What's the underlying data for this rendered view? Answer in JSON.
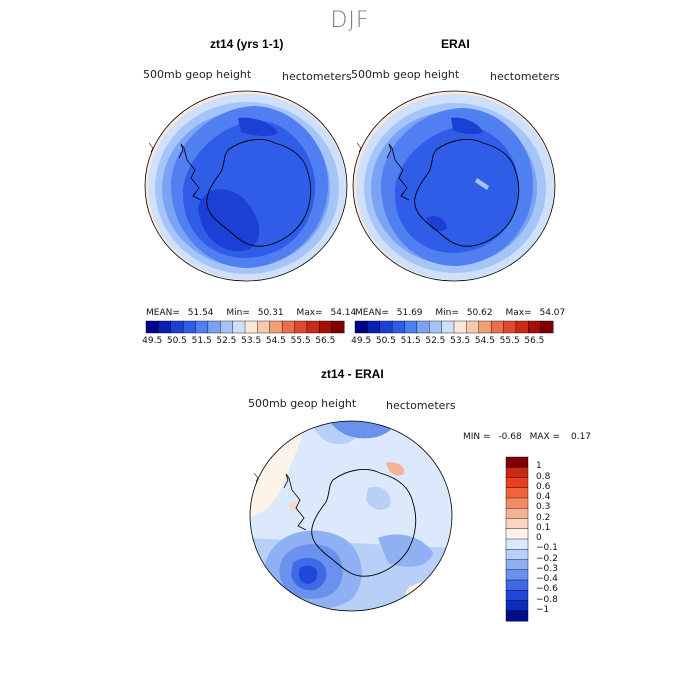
{
  "figure": {
    "season": "DJF"
  },
  "panels": [
    {
      "title": "zt14 (yrs 1-1)",
      "field_label": "500mb geop height",
      "units_label": "hectometers",
      "stats": {
        "mean_label": "MEAN=",
        "mean": "51.54",
        "min_label": "Min=",
        "min": "50.31",
        "max_label": "Max=",
        "max": "54.14"
      }
    },
    {
      "title": "ERAI",
      "field_label": "500mb geop height",
      "units_label": "hectometers",
      "stats": {
        "mean_label": "MEAN=",
        "mean": "51.69",
        "min_label": "Min=",
        "min": "50.62",
        "max_label": "Max=",
        "max": "54.07"
      }
    },
    {
      "title": "zt14 - ERAI",
      "field_label": "500mb geop height",
      "units_label": "hectometers",
      "stats": {
        "min_label": "MIN =",
        "min": "-0.68",
        "max_label": "MAX =",
        "max": "0.17"
      }
    }
  ],
  "colorbar_top": {
    "colors": [
      "#00008b",
      "#0a1fb4",
      "#1c3fd6",
      "#2f5de8",
      "#4f7ff0",
      "#7aa2f5",
      "#a5c4f8",
      "#cfe0fb",
      "#fbe8d8",
      "#f6c9ad",
      "#f29d7a",
      "#eb6f4e",
      "#e04a2c",
      "#c92a16",
      "#a50f08",
      "#7f0000"
    ],
    "ticks": [
      "49.5",
      "50.5",
      "51.5",
      "52.5",
      "53.5",
      "54.5",
      "55.5",
      "56.5"
    ]
  },
  "colorbar_diff": {
    "colors": [
      "#7f0000",
      "#c92a16",
      "#e8401f",
      "#f0633d",
      "#f38c66",
      "#f6b294",
      "#fad5c1",
      "#fdf3e8",
      "#dce8fb",
      "#b8d0f8",
      "#8fb0f3",
      "#6a91ee",
      "#3f6ae6",
      "#1f47d8",
      "#0e2cba",
      "#000c8a"
    ],
    "ticks": [
      "1",
      "0.8",
      "0.6",
      "0.4",
      "0.3",
      "0.2",
      "0.1",
      "0",
      "−0.1",
      "−0.2",
      "−0.3",
      "−0.4",
      "−0.6",
      "−0.8",
      "−1"
    ]
  }
}
